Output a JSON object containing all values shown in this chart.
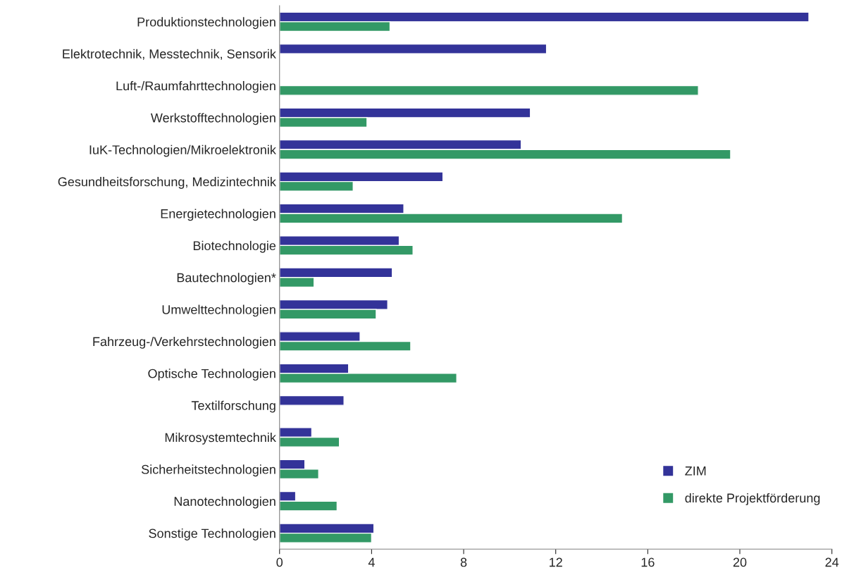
{
  "chart_data": {
    "type": "bar",
    "orientation": "horizontal",
    "categories": [
      "Produktionstechnologien",
      "Elektrotechnik, Messtechnik, Sensorik",
      "Luft-/Raumfahrttechnologien",
      "Werkstofftechnologien",
      "IuK-Technologien/Mikroelektronik",
      "Gesundheitsforschung, Medizintechnik",
      "Energietechnologien",
      "Biotechnologie",
      "Bautechnologien*",
      "Umwelttechnologien",
      "Fahrzeug-/Verkehrstechnologien",
      "Optische Technologien",
      "Textilforschung",
      "Mikrosystemtechnik",
      "Sicherheitstechnologien",
      "Nanotechnologien",
      "Sonstige Technologien"
    ],
    "series": [
      {
        "name": "ZIM",
        "color": "#333399",
        "values": [
          23.0,
          11.6,
          null,
          10.9,
          10.5,
          7.1,
          5.4,
          5.2,
          4.9,
          4.7,
          3.5,
          3.0,
          2.8,
          1.4,
          1.1,
          0.7,
          4.1
        ]
      },
      {
        "name": "direkte Projektförderung",
        "color": "#339966",
        "values": [
          4.8,
          null,
          18.2,
          3.8,
          19.6,
          3.2,
          14.9,
          5.8,
          1.5,
          4.2,
          5.7,
          7.7,
          null,
          2.6,
          1.7,
          2.5,
          4.0
        ]
      }
    ],
    "xlim": [
      0,
      24
    ],
    "xticks": [
      0,
      4,
      8,
      12,
      16,
      20,
      24
    ],
    "grid": false,
    "legend": "bottom right"
  }
}
